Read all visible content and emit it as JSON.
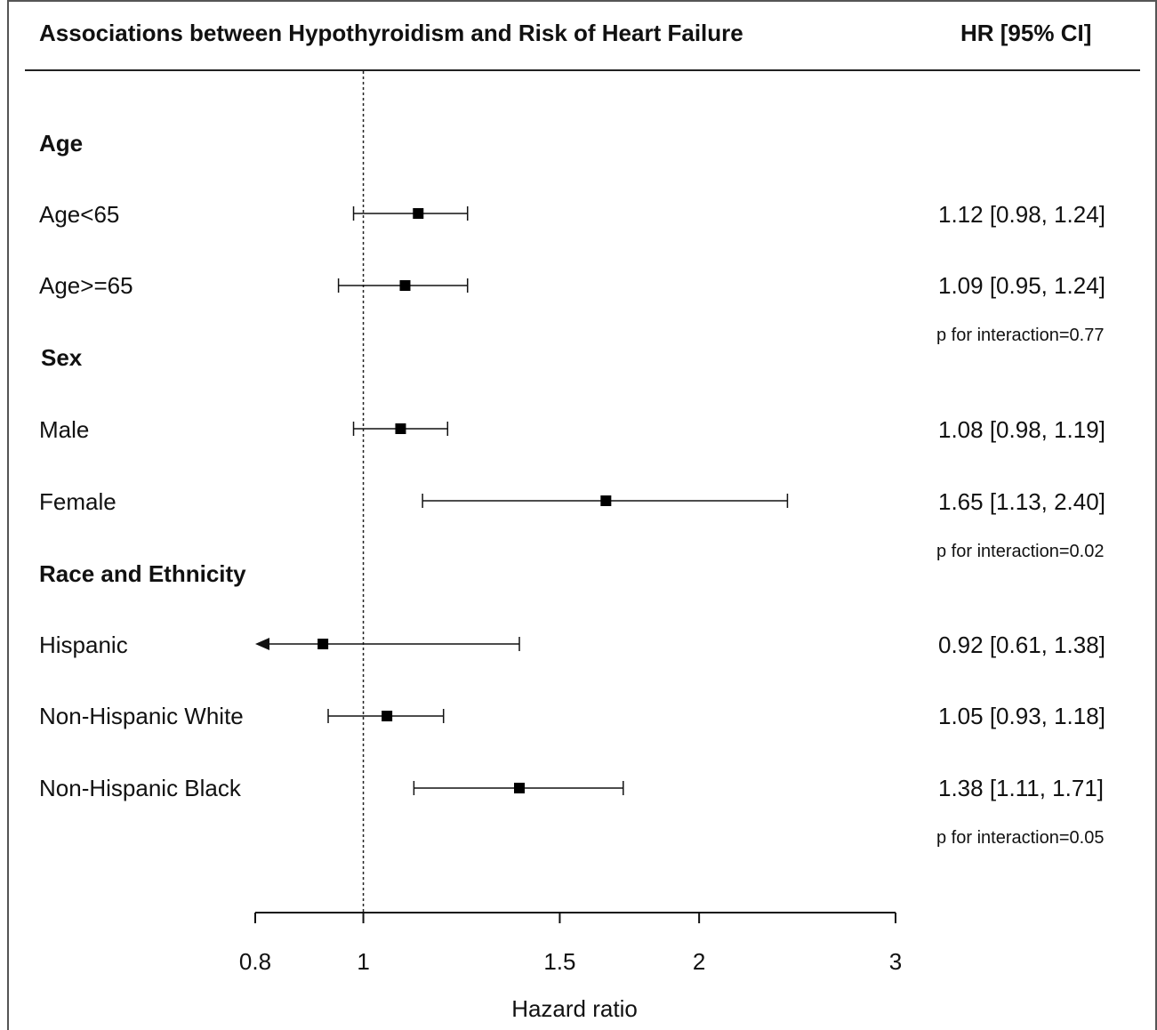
{
  "header": {
    "title": "Associations between Hypothyroidism and Risk of Heart Failure",
    "hr_column": "HR [95% CI]"
  },
  "groups": [
    {
      "label": "Age",
      "rows": [
        {
          "label": "Age<65",
          "hr_text": "1.12 [0.98, 1.24]"
        },
        {
          "label": "Age>=65",
          "hr_text": "1.09 [0.95, 1.24]"
        }
      ],
      "p_interaction": "p for interaction=0.77"
    },
    {
      "label": "Sex",
      "rows": [
        {
          "label": "Male",
          "hr_text": "1.08 [0.98, 1.19]"
        },
        {
          "label": "Female",
          "hr_text": "1.65 [1.13, 2.40]"
        }
      ],
      "p_interaction": "p for interaction=0.02"
    },
    {
      "label": "Race and Ethnicity",
      "rows": [
        {
          "label": "Hispanic",
          "hr_text": "0.92 [0.61, 1.38]"
        },
        {
          "label": "Non-Hispanic White",
          "hr_text": "1.05 [0.93, 1.18]"
        },
        {
          "label": "Non-Hispanic Black",
          "hr_text": "1.38 [1.11, 1.71]"
        }
      ],
      "p_interaction": "p for interaction=0.05"
    }
  ],
  "chart_data": {
    "type": "forest",
    "title": "Associations between Hypothyroidism and Risk of Heart Failure",
    "xlabel": "Hazard ratio",
    "x_scale": "log",
    "xlim": [
      0.8,
      3
    ],
    "x_ticks": [
      0.8,
      1,
      1.5,
      2,
      3
    ],
    "x_tick_labels": [
      "0.8",
      "1",
      "1.5",
      "2",
      "3"
    ],
    "reference_line": 1,
    "rows": [
      {
        "label": "Age<65",
        "hr": 1.12,
        "lower": 0.98,
        "upper": 1.24
      },
      {
        "label": "Age>=65",
        "hr": 1.09,
        "lower": 0.95,
        "upper": 1.24
      },
      {
        "label": "Male",
        "hr": 1.08,
        "lower": 0.98,
        "upper": 1.19
      },
      {
        "label": "Female",
        "hr": 1.65,
        "lower": 1.13,
        "upper": 2.4
      },
      {
        "label": "Hispanic",
        "hr": 0.92,
        "lower": 0.61,
        "upper": 1.38
      },
      {
        "label": "Non-Hispanic White",
        "hr": 1.05,
        "lower": 0.93,
        "upper": 1.18
      },
      {
        "label": "Non-Hispanic Black",
        "hr": 1.38,
        "lower": 1.11,
        "upper": 1.71
      }
    ]
  }
}
